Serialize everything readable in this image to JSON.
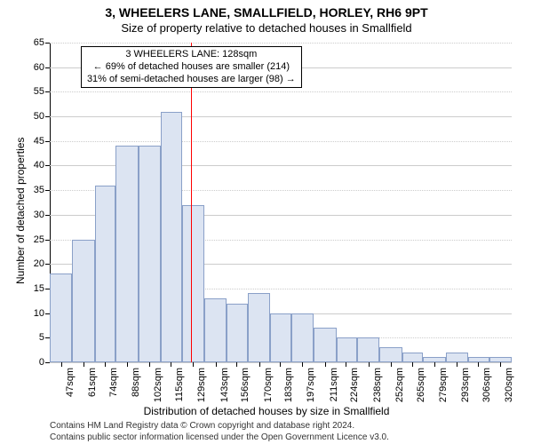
{
  "title_main": "3, WHEELERS LANE, SMALLFIELD, HORLEY, RH6 9PT",
  "title_sub": "Size of property relative to detached houses in Smallfield",
  "y_axis_label": "Number of detached properties",
  "x_axis_label": "Distribution of detached houses by size in Smallfield",
  "attribution_line1": "Contains HM Land Registry data © Crown copyright and database right 2024.",
  "attribution_line2": "Contains public sector information licensed under the Open Government Licence v3.0.",
  "chart": {
    "type": "histogram",
    "ylim": [
      0,
      65
    ],
    "ytick_step": 5,
    "background_color": "#ffffff",
    "grid_color_major": "#cccccc",
    "grid_color_minor": "#cccccc",
    "grid_style_major": "solid",
    "grid_style_minor": "dotted",
    "axis_color": "#000000",
    "bar_fill": "#dce4f2",
    "bar_border": "#8aa0c8",
    "bar_border_width": 1,
    "x_range_sqm": [
      40,
      327
    ],
    "x_tick_labels": [
      "47sqm",
      "61sqm",
      "74sqm",
      "88sqm",
      "102sqm",
      "115sqm",
      "129sqm",
      "143sqm",
      "156sqm",
      "170sqm",
      "183sqm",
      "197sqm",
      "211sqm",
      "224sqm",
      "238sqm",
      "252sqm",
      "265sqm",
      "279sqm",
      "293sqm",
      "306sqm",
      "320sqm"
    ],
    "x_tick_positions_sqm": [
      47,
      61,
      74,
      88,
      102,
      115,
      129,
      143,
      156,
      170,
      183,
      197,
      211,
      224,
      238,
      252,
      265,
      279,
      293,
      306,
      320
    ],
    "bars": [
      {
        "start_sqm": 40,
        "end_sqm": 54,
        "count": 18
      },
      {
        "start_sqm": 54,
        "end_sqm": 68,
        "count": 25
      },
      {
        "start_sqm": 68,
        "end_sqm": 81,
        "count": 36
      },
      {
        "start_sqm": 81,
        "end_sqm": 95,
        "count": 44
      },
      {
        "start_sqm": 95,
        "end_sqm": 109,
        "count": 44
      },
      {
        "start_sqm": 109,
        "end_sqm": 122,
        "count": 51
      },
      {
        "start_sqm": 122,
        "end_sqm": 136,
        "count": 32
      },
      {
        "start_sqm": 136,
        "end_sqm": 150,
        "count": 13
      },
      {
        "start_sqm": 150,
        "end_sqm": 163,
        "count": 12
      },
      {
        "start_sqm": 163,
        "end_sqm": 177,
        "count": 14
      },
      {
        "start_sqm": 177,
        "end_sqm": 190,
        "count": 10
      },
      {
        "start_sqm": 190,
        "end_sqm": 204,
        "count": 10
      },
      {
        "start_sqm": 204,
        "end_sqm": 218,
        "count": 7
      },
      {
        "start_sqm": 218,
        "end_sqm": 231,
        "count": 5
      },
      {
        "start_sqm": 231,
        "end_sqm": 245,
        "count": 5
      },
      {
        "start_sqm": 245,
        "end_sqm": 259,
        "count": 3
      },
      {
        "start_sqm": 259,
        "end_sqm": 272,
        "count": 2
      },
      {
        "start_sqm": 272,
        "end_sqm": 286,
        "count": 1
      },
      {
        "start_sqm": 286,
        "end_sqm": 300,
        "count": 2
      },
      {
        "start_sqm": 300,
        "end_sqm": 313,
        "count": 1
      },
      {
        "start_sqm": 313,
        "end_sqm": 327,
        "count": 1
      }
    ],
    "reference_line": {
      "value_sqm": 128,
      "color": "#ff0000",
      "width": 1,
      "style": "solid"
    },
    "annotation": {
      "line1": "3 WHEELERS LANE: 128sqm",
      "line2": "← 69% of detached houses are smaller (214)",
      "line3": "31% of semi-detached houses are larger (98) →",
      "border_color": "#000000",
      "background_color": "#ffffff",
      "fontsize": 11
    },
    "title_fontsize": 14,
    "subtitle_fontsize": 13,
    "tick_fontsize": 11,
    "axis_label_fontsize": 12,
    "attribution_fontsize": 10
  }
}
